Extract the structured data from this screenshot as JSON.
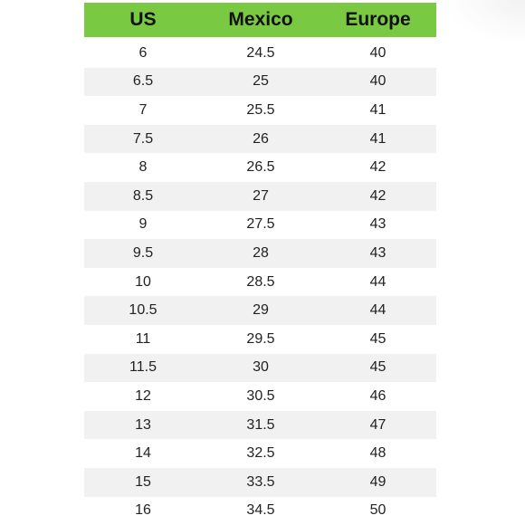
{
  "table": {
    "headers": [
      "US",
      "Mexico",
      "Europe"
    ],
    "header_color": "#7ac943",
    "rows": [
      [
        "6",
        "24.5",
        "40"
      ],
      [
        "6.5",
        "25",
        "40"
      ],
      [
        "7",
        "25.5",
        "41"
      ],
      [
        "7.5",
        "26",
        "41"
      ],
      [
        "8",
        "26.5",
        "42"
      ],
      [
        "8.5",
        "27",
        "42"
      ],
      [
        "9",
        "27.5",
        "43"
      ],
      [
        "9.5",
        "28",
        "43"
      ],
      [
        "10",
        "28.5",
        "44"
      ],
      [
        "10.5",
        "29",
        "44"
      ],
      [
        "11",
        "29.5",
        "45"
      ],
      [
        "11.5",
        "30",
        "45"
      ],
      [
        "12",
        "30.5",
        "46"
      ],
      [
        "13",
        "31.5",
        "47"
      ],
      [
        "14",
        "32.5",
        "48"
      ],
      [
        "15",
        "33.5",
        "49"
      ],
      [
        "16",
        "34.5",
        "50"
      ]
    ]
  }
}
